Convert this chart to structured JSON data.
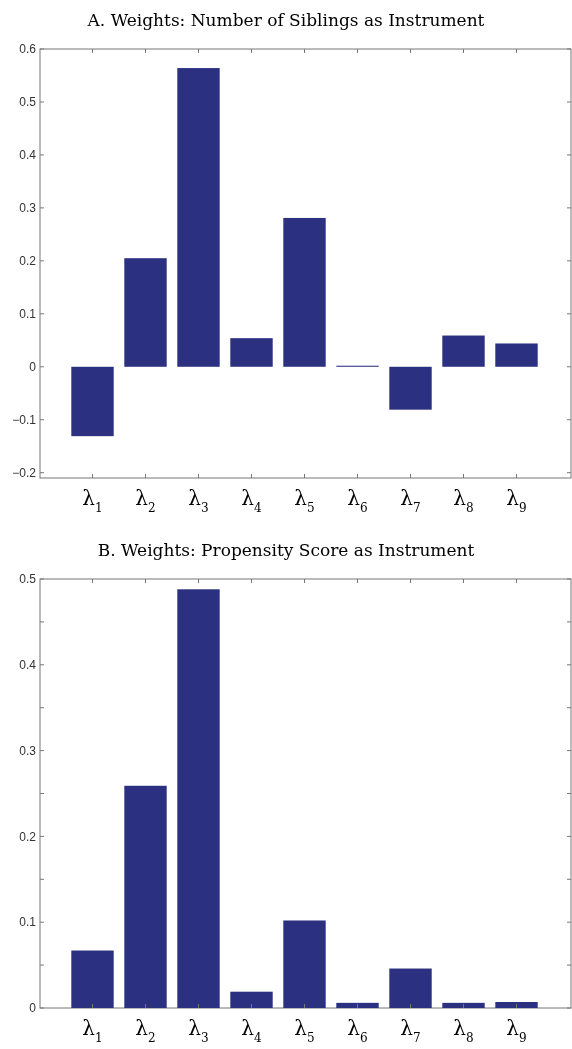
{
  "chart_data": [
    {
      "type": "bar",
      "title": "A. Weights: Number of Siblings as Instrument",
      "categories": [
        "λ$_{1}$",
        "λ$_{2}$",
        "λ$_{3}$",
        "λ$_{4}$",
        "λ$_{5}$",
        "λ$_{6}$",
        "λ$_{7}$",
        "λ$_{8}$",
        "λ$_{9}$"
      ],
      "values": [
        -0.131,
        0.205,
        0.564,
        0.054,
        0.281,
        0.002,
        -0.081,
        0.059,
        0.044
      ],
      "color": "#2b3080",
      "ylim": [
        -0.21,
        0.6
      ],
      "yticks": [
        {
          "value": -0.2,
          "label": "−0.2"
        },
        {
          "value": -0.1,
          "label": "−0.1"
        },
        0,
        0.1,
        0.2,
        0.3,
        0.4,
        0.5,
        0.6
      ],
      "grid": false
    },
    {
      "type": "bar",
      "title": "B. Weights: Propensity Score as Instrument",
      "categories": [
        "λ$_{1}$",
        "λ$_{2}$",
        "λ$_{3}$",
        "λ$_{4}$",
        "λ$_{5}$",
        "λ$_{6}$",
        "λ$_{7}$",
        "λ$_{8}$",
        "λ$_{9}$"
      ],
      "values": [
        0.067,
        0.259,
        0.488,
        0.019,
        0.102,
        0.006,
        0.046,
        0.006,
        0.007
      ],
      "color": "#2b3080",
      "ylim": [
        0,
        0.5
      ],
      "yticks": [
        0,
        {
          "value": 0.05,
          "label": null
        },
        0.1,
        {
          "value": 0.15,
          "label": null
        },
        0.2,
        {
          "value": 0.25,
          "label": null
        },
        0.3,
        {
          "value": 0.35,
          "label": null
        },
        0.4,
        {
          "value": 0.45,
          "label": null
        },
        0.5
      ],
      "grid": false
    }
  ]
}
